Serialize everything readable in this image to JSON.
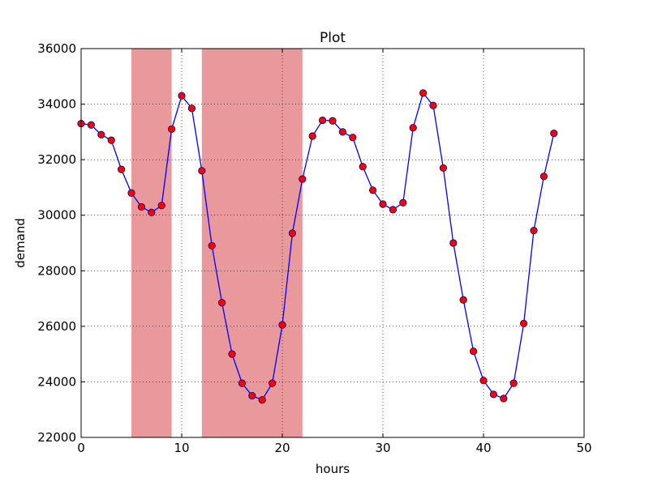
{
  "chart_data": {
    "type": "line",
    "title": "Plot",
    "xlabel": "hours",
    "ylabel": "demand",
    "xlim": [
      0,
      50
    ],
    "ylim": [
      22000,
      36000
    ],
    "xticks": [
      0,
      10,
      20,
      30,
      40,
      50
    ],
    "yticks": [
      22000,
      24000,
      26000,
      28000,
      30000,
      32000,
      34000,
      36000
    ],
    "grid": true,
    "legend": "none",
    "colors": {
      "line": "#0000ff",
      "marker_fill": "#ff0000",
      "marker_edge": "#000080",
      "shade": "#e9999b"
    },
    "shaded_x_ranges": [
      [
        5,
        9
      ],
      [
        12,
        22
      ]
    ],
    "series": [
      {
        "x": [
          0,
          1,
          2,
          3,
          4,
          5,
          6,
          7,
          8,
          9,
          10,
          11,
          12,
          13,
          14,
          15,
          16,
          17,
          18,
          19,
          20,
          21,
          22,
          23,
          24,
          25,
          26,
          27,
          28,
          29,
          30,
          31,
          32,
          33,
          34,
          35,
          36,
          37,
          38,
          39,
          40,
          41,
          42,
          43,
          44,
          45,
          46,
          47
        ],
        "y": [
          33300,
          33250,
          32900,
          32700,
          31650,
          30800,
          30300,
          30100,
          30350,
          33100,
          34300,
          33850,
          31600,
          28900,
          26850,
          25000,
          23950,
          23500,
          23350,
          23950,
          26050,
          29350,
          31300,
          32850,
          33420,
          33400,
          33000,
          32800,
          31750,
          30900,
          30400,
          30200,
          30450,
          33150,
          34400,
          33950,
          31700,
          29000,
          26950,
          25100,
          24050,
          23550,
          23400,
          23950,
          26100,
          29450,
          31400,
          32950
        ]
      }
    ]
  }
}
